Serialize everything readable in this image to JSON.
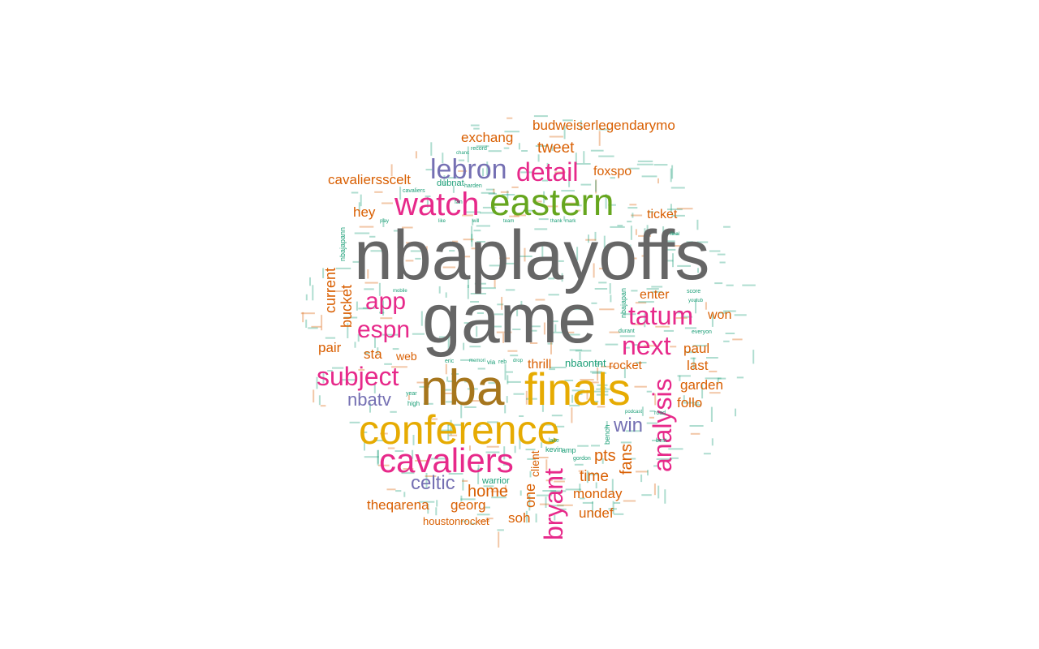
{
  "colors": {
    "gray": "#666666",
    "brown": "#A6761D",
    "gold": "#E6AB02",
    "green": "#66A61E",
    "magenta": "#E7298A",
    "purple": "#7570B3",
    "orange": "#D95F02",
    "teal": "#1B9E77"
  },
  "words": [
    {
      "text": "nbaplayoffs",
      "color": "gray"
    },
    {
      "text": "game",
      "color": "gray"
    },
    {
      "text": "nba",
      "color": "brown"
    },
    {
      "text": "finals",
      "color": "gold"
    },
    {
      "text": "conference",
      "color": "gold"
    },
    {
      "text": "eastern",
      "color": "green"
    },
    {
      "text": "cavaliers",
      "color": "magenta"
    },
    {
      "text": "watch",
      "color": "magenta"
    },
    {
      "text": "lebron",
      "color": "purple"
    },
    {
      "text": "detail",
      "color": "magenta"
    },
    {
      "text": "tatum",
      "color": "magenta"
    },
    {
      "text": "next",
      "color": "magenta"
    },
    {
      "text": "analysis",
      "color": "magenta"
    },
    {
      "text": "bryant",
      "color": "magenta"
    },
    {
      "text": "subject",
      "color": "magenta"
    },
    {
      "text": "espn",
      "color": "magenta"
    },
    {
      "text": "app",
      "color": "magenta"
    },
    {
      "text": "nbatv",
      "color": "purple"
    },
    {
      "text": "celtic",
      "color": "purple"
    },
    {
      "text": "win",
      "color": "purple"
    },
    {
      "text": "budweiserlegendarymo",
      "color": "orange"
    },
    {
      "text": "exchang",
      "color": "orange"
    },
    {
      "text": "tweet",
      "color": "orange"
    },
    {
      "text": "foxspo",
      "color": "orange"
    },
    {
      "text": "cavaliersscelt",
      "color": "orange"
    },
    {
      "text": "hey",
      "color": "orange"
    },
    {
      "text": "ticket",
      "color": "orange"
    },
    {
      "text": "current",
      "color": "orange"
    },
    {
      "text": "bucket",
      "color": "orange"
    },
    {
      "text": "pair",
      "color": "orange"
    },
    {
      "text": "sta",
      "color": "orange"
    },
    {
      "text": "web",
      "color": "orange"
    },
    {
      "text": "enter",
      "color": "orange"
    },
    {
      "text": "won",
      "color": "orange"
    },
    {
      "text": "paul",
      "color": "orange"
    },
    {
      "text": "last",
      "color": "orange"
    },
    {
      "text": "garden",
      "color": "orange"
    },
    {
      "text": "follo",
      "color": "orange"
    },
    {
      "text": "thrill",
      "color": "orange"
    },
    {
      "text": "rocket",
      "color": "orange"
    },
    {
      "text": "pts",
      "color": "orange"
    },
    {
      "text": "fans",
      "color": "orange"
    },
    {
      "text": "time",
      "color": "orange"
    },
    {
      "text": "monday",
      "color": "orange"
    },
    {
      "text": "undef",
      "color": "orange"
    },
    {
      "text": "home",
      "color": "orange"
    },
    {
      "text": "one",
      "color": "orange"
    },
    {
      "text": "client",
      "color": "orange"
    },
    {
      "text": "soh",
      "color": "orange"
    },
    {
      "text": "georg",
      "color": "orange"
    },
    {
      "text": "theqarena",
      "color": "orange"
    },
    {
      "text": "houstonrocket",
      "color": "orange"
    },
    {
      "text": "nbaontnt",
      "color": "teal"
    },
    {
      "text": "nbajapan",
      "color": "teal"
    },
    {
      "text": "nbajapann",
      "color": "teal"
    },
    {
      "text": "dubnat",
      "color": "teal"
    },
    {
      "text": "cavaliers",
      "color": "teal"
    },
    {
      "text": "harden",
      "color": "teal"
    },
    {
      "text": "warrior",
      "color": "teal"
    },
    {
      "text": "kevin",
      "color": "teal"
    },
    {
      "text": "durant",
      "color": "teal"
    },
    {
      "text": "everyon",
      "color": "teal"
    },
    {
      "text": "bench",
      "color": "teal"
    },
    {
      "text": "gordon",
      "color": "teal"
    },
    {
      "text": "memori",
      "color": "teal"
    },
    {
      "text": "record",
      "color": "teal"
    },
    {
      "text": "mobile",
      "color": "teal"
    },
    {
      "text": "high",
      "color": "teal"
    },
    {
      "text": "year",
      "color": "teal"
    },
    {
      "text": "eric",
      "color": "teal"
    },
    {
      "text": "via",
      "color": "teal"
    },
    {
      "text": "reb",
      "color": "teal"
    },
    {
      "text": "road",
      "color": "teal"
    },
    {
      "text": "score",
      "color": "teal"
    },
    {
      "text": "amp",
      "color": "teal"
    },
    {
      "text": "lake",
      "color": "teal"
    },
    {
      "text": "chanc",
      "color": "teal"
    },
    {
      "text": "podcast",
      "color": "teal"
    },
    {
      "text": "youtub",
      "color": "teal"
    },
    {
      "text": "drop",
      "color": "teal"
    },
    {
      "text": "mark",
      "color": "teal"
    },
    {
      "text": "thank",
      "color": "teal"
    },
    {
      "text": "fan",
      "color": "teal"
    },
    {
      "text": "best",
      "color": "teal"
    },
    {
      "text": "like",
      "color": "teal"
    },
    {
      "text": "will",
      "color": "teal"
    },
    {
      "text": "play",
      "color": "teal"
    },
    {
      "text": "team",
      "color": "teal"
    },
    {
      "text": "final",
      "color": "teal"
    }
  ]
}
